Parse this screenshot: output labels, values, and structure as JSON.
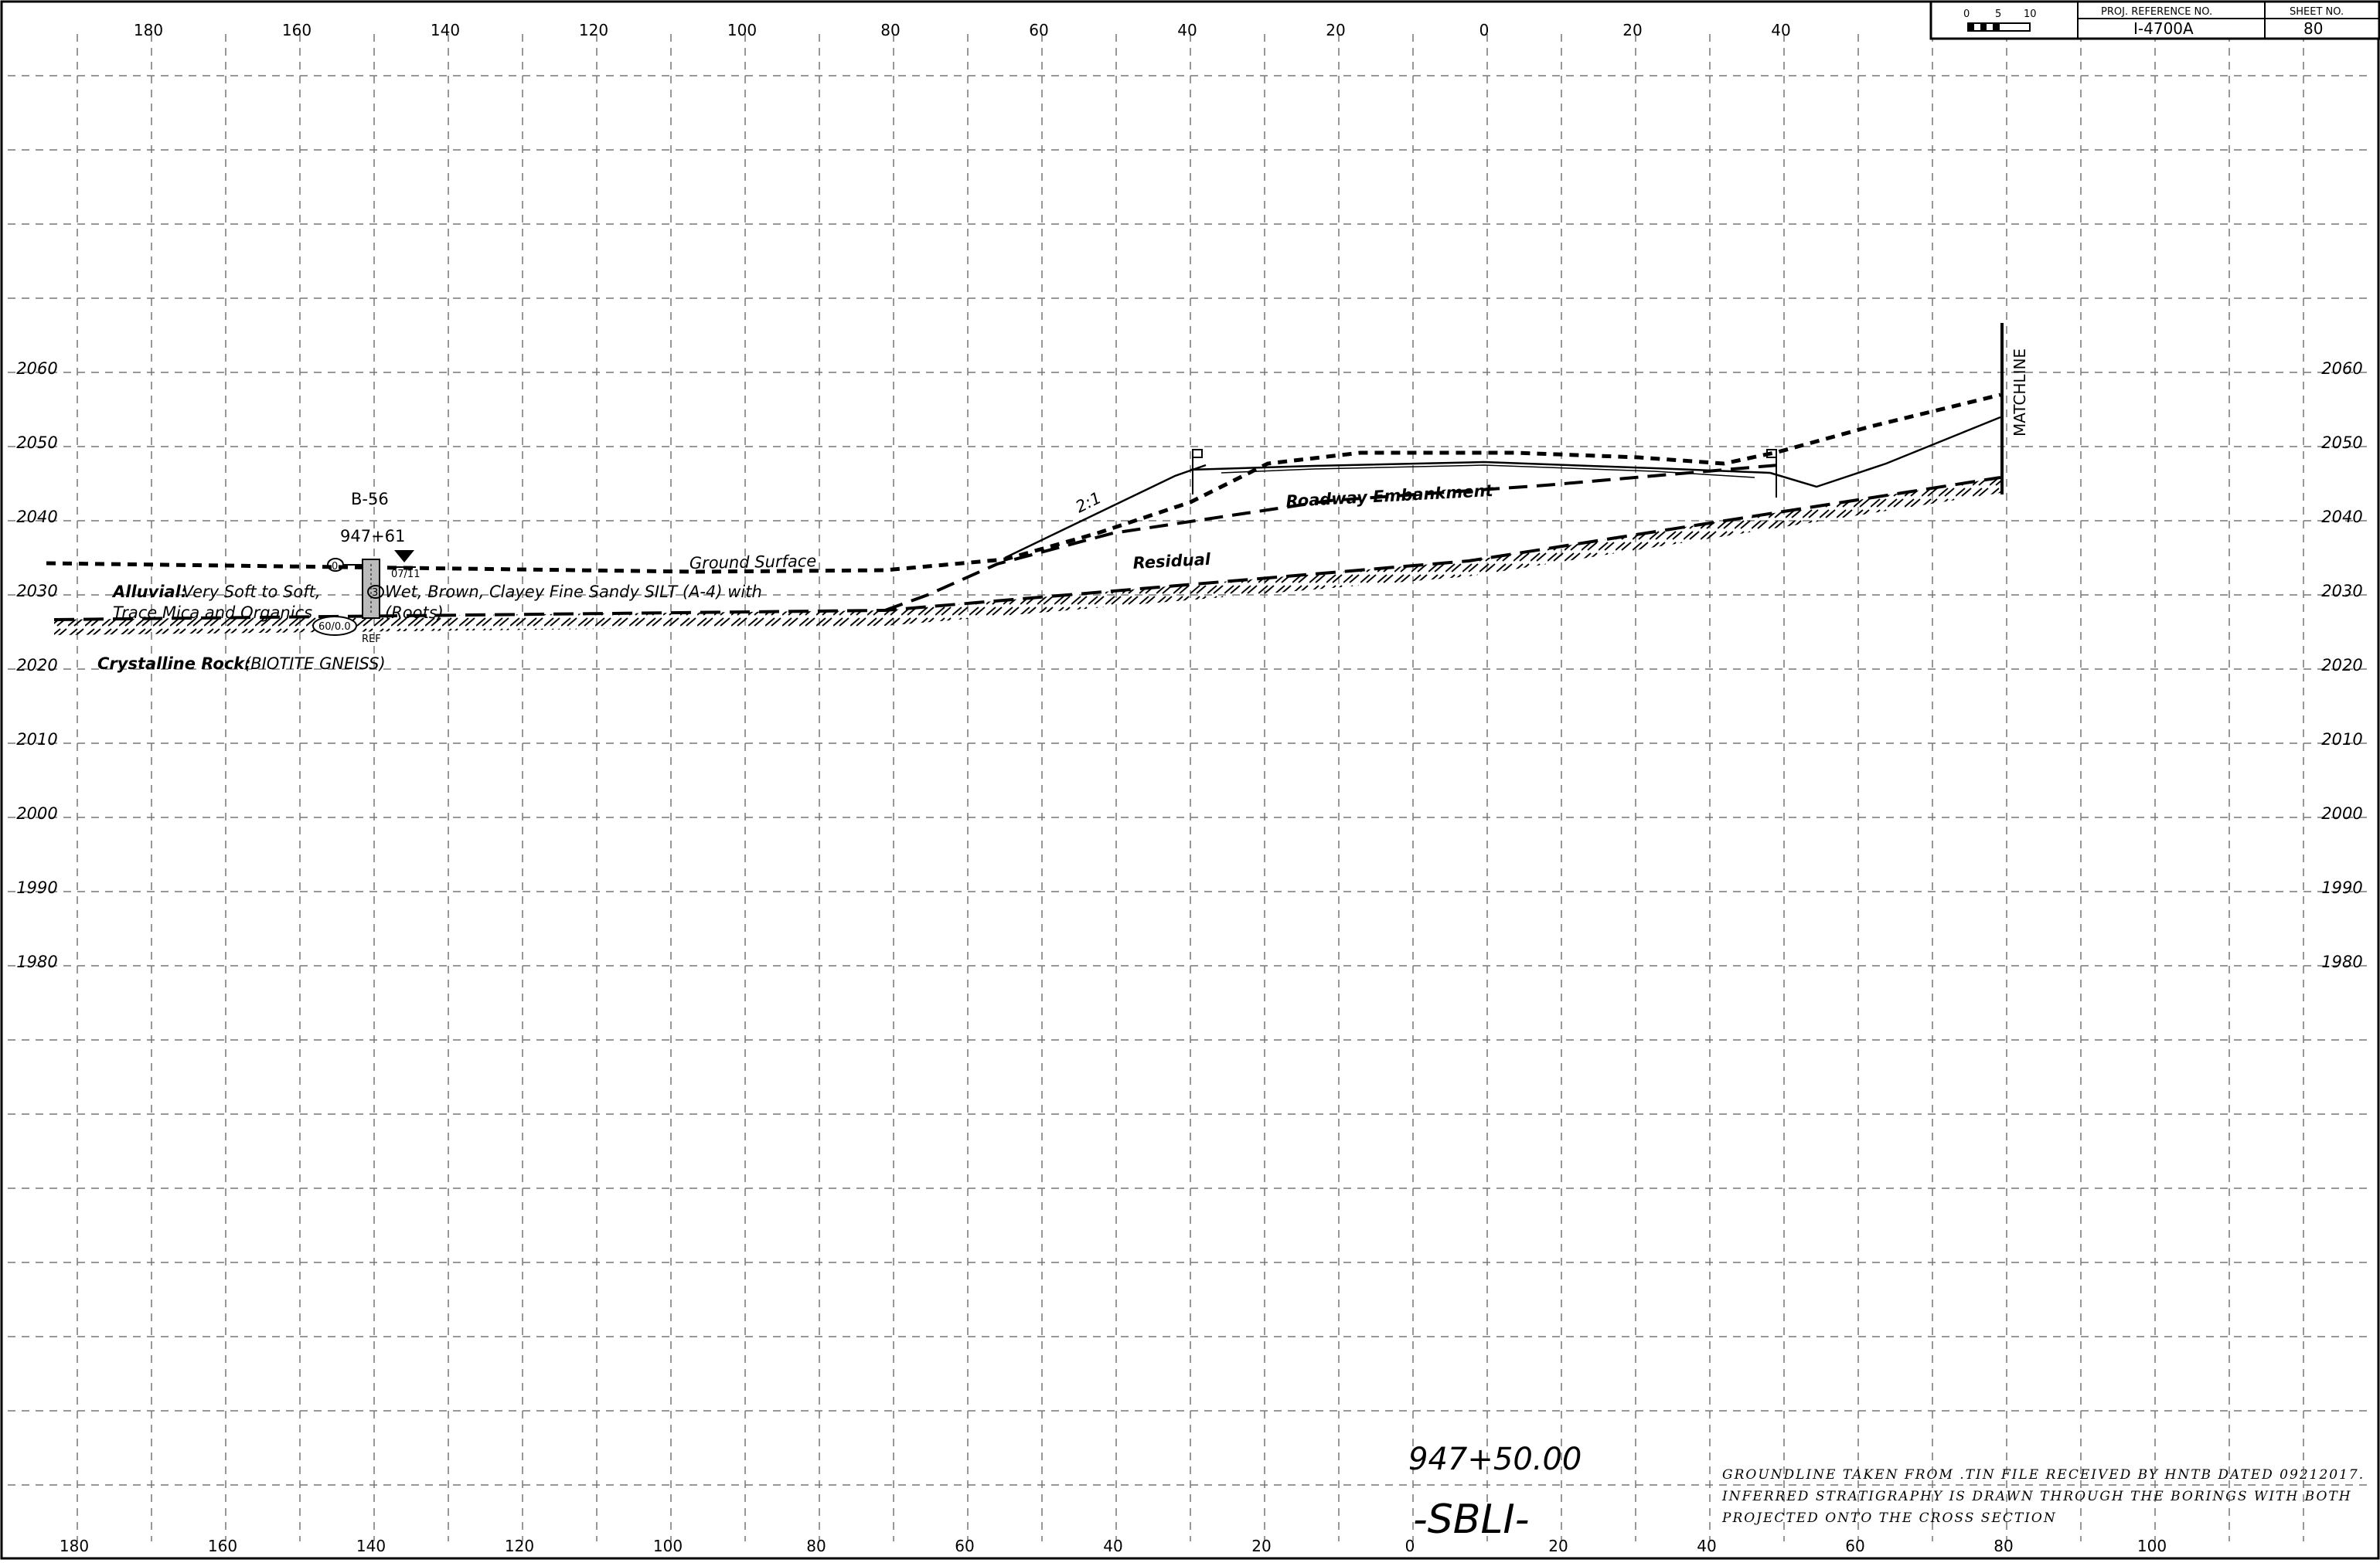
{
  "title_block": {
    "scale_labels": [
      "0",
      "5",
      "10"
    ],
    "proj_ref_header": "PROJ. REFERENCE NO.",
    "proj_ref_value": "I-4700A",
    "sheet_no_header": "SHEET NO.",
    "sheet_no_value": "80"
  },
  "axes": {
    "x_ticks_top": [
      "180",
      "160",
      "140",
      "120",
      "100",
      "80",
      "60",
      "40",
      "20",
      "0",
      "20",
      "40"
    ],
    "x_ticks_bottom": [
      "180",
      "160",
      "140",
      "120",
      "100",
      "80",
      "60",
      "40",
      "20",
      "0",
      "20",
      "40",
      "60",
      "80",
      "100"
    ],
    "elevations": [
      "2060",
      "2050",
      "2040",
      "2030",
      "2020",
      "2010",
      "2000",
      "1990",
      "1980"
    ]
  },
  "boring": {
    "id": "B-56",
    "station": "947+61",
    "date": "07/11",
    "blow_counts": [
      "0",
      "3"
    ],
    "refusal": "60/0.0",
    "ref": "REF"
  },
  "labels": {
    "ground_surface": "Ground Surface",
    "alluvial_head": "Alluvial:",
    "alluvial_desc1": "Very Soft to Soft,",
    "alluvial_desc2": "Wet, Brown, Clayey Fine Sandy SILT (A-4) with",
    "alluvial_desc3": "Trace Mica and Organics",
    "alluvial_desc4": "(Roots)",
    "rock_head": "Crystalline Rock:",
    "rock_desc": "(BIOTITE GNEISS)",
    "slope": "2:1",
    "embankment": "Roadway Embankment",
    "residual": "Residual",
    "matchline": "MATCHLINE"
  },
  "section": {
    "station": "947+50.00",
    "line": "-SBLI-"
  },
  "notes": [
    "GROUNDLINE TAKEN FROM .TIN FILE RECEIVED BY HNTB DATED 09212017.",
    "INFERRED STRATIGRAPHY IS DRAWN THROUGH THE BORINGS WITH BOTH",
    "PROJECTED ONTO THE CROSS SECTION"
  ]
}
